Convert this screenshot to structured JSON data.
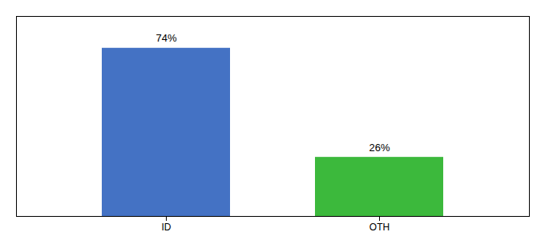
{
  "chart_data": {
    "type": "bar",
    "categories": [
      "ID",
      "OTH"
    ],
    "values": [
      74,
      26
    ],
    "value_labels": [
      "74%",
      "26%"
    ],
    "colors": [
      "#4472c4",
      "#3cb93c"
    ],
    "ylim": [
      0,
      88
    ],
    "data_labels": true,
    "tick_labels": "x"
  }
}
